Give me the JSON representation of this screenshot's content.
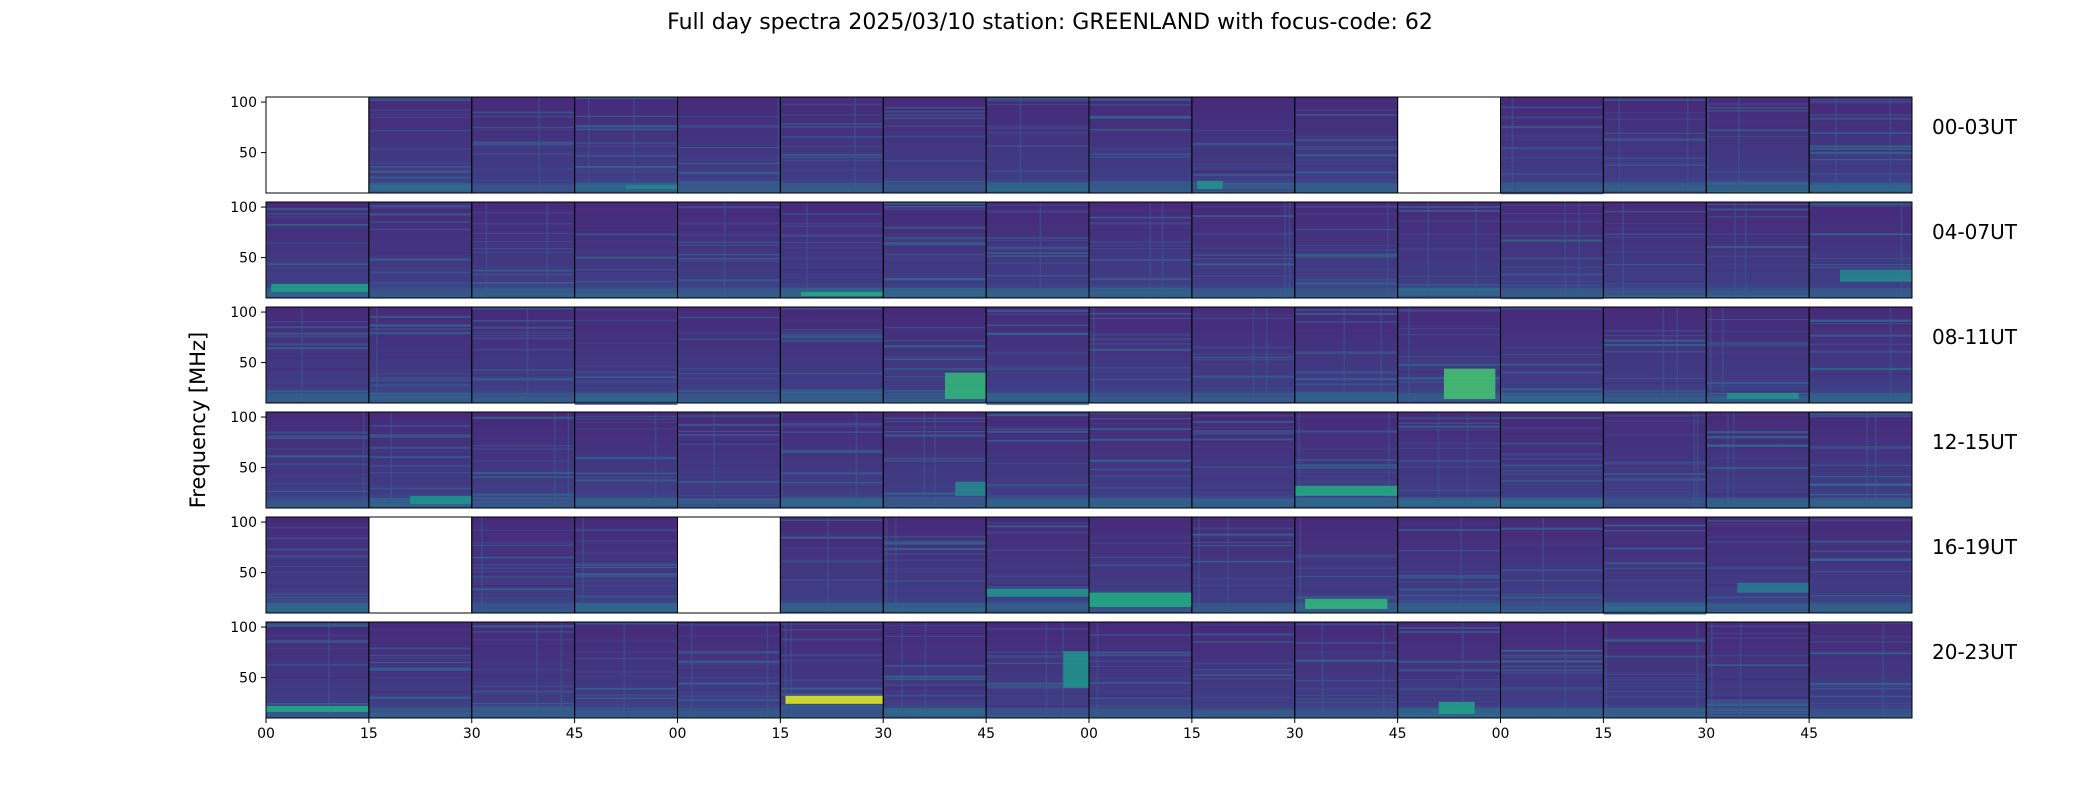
{
  "figure": {
    "title": "Full day spectra 2025/03/10 station: GREENLAND with focus-code: 62"
  },
  "chart_data": {
    "type": "heatmap",
    "title": "Full day spectra 2025/03/10 station: GREENLAND with focus-code: 62",
    "ylabel": "Frequency [MHz]",
    "xlabel": "",
    "ylim": [
      10,
      105
    ],
    "yticks": [
      "100",
      "50"
    ],
    "xticks": [
      "00",
      "15",
      "30",
      "45",
      "00",
      "15",
      "30",
      "45",
      "00",
      "15",
      "30",
      "45",
      "00",
      "15",
      "30",
      "45"
    ],
    "colormap": "viridis",
    "colors": {
      "low": "#440154",
      "background": "#46307a",
      "mid": "#21918c",
      "high": "#fde725"
    },
    "rows": [
      {
        "label": "00-03UT",
        "missing_panels": [
          0,
          11
        ]
      },
      {
        "label": "04-07UT",
        "missing_panels": []
      },
      {
        "label": "08-11UT",
        "missing_panels": []
      },
      {
        "label": "12-15UT",
        "missing_panels": []
      },
      {
        "label": "16-19UT",
        "missing_panels": [
          1,
          4
        ]
      },
      {
        "label": "20-23UT",
        "missing_panels": []
      }
    ],
    "panels_per_row": 16,
    "panel_minutes": 15
  }
}
